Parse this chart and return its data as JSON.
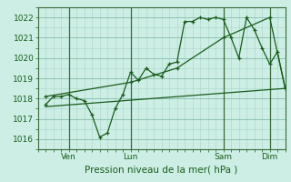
{
  "xlabel": "Pression niveau de la mer( hPa )",
  "bg_color": "#cceee4",
  "grid_color_major": "#88bbaa",
  "grid_color_minor": "#aad4c8",
  "line_color": "#1a5c1a",
  "spine_color": "#3a6a3a",
  "ylim": [
    1015.5,
    1022.5
  ],
  "yticks": [
    1016,
    1017,
    1018,
    1019,
    1020,
    1021,
    1022
  ],
  "xlim": [
    0,
    192
  ],
  "xtick_pos": [
    24,
    72,
    144,
    180
  ],
  "xtick_labels": [
    "Ven",
    "Lun",
    "Sam",
    "Dim"
  ],
  "vline_x": [
    24,
    72,
    144,
    180
  ],
  "series1_x": [
    6,
    12,
    18,
    24,
    30,
    36,
    42,
    48,
    54,
    60,
    66,
    72,
    78,
    84,
    90,
    96,
    102,
    108,
    114,
    120,
    126,
    132,
    138,
    144,
    150,
    156,
    162,
    168,
    174,
    180,
    186,
    192
  ],
  "series1_y": [
    1017.7,
    1018.1,
    1018.1,
    1018.2,
    1018.0,
    1017.9,
    1017.2,
    1016.1,
    1016.3,
    1017.5,
    1018.2,
    1019.3,
    1018.9,
    1019.5,
    1019.2,
    1019.1,
    1019.7,
    1019.8,
    1021.8,
    1021.8,
    1022.0,
    1021.9,
    1022.0,
    1021.9,
    1021.0,
    1020.0,
    1022.0,
    1021.4,
    1020.5,
    1019.7,
    1020.3,
    1018.5
  ],
  "series2_x": [
    6,
    72,
    108,
    144,
    180,
    192
  ],
  "series2_y": [
    1018.1,
    1018.8,
    1019.5,
    1021.0,
    1022.0,
    1018.5
  ],
  "series3_x": [
    6,
    192
  ],
  "series3_y": [
    1017.6,
    1018.5
  ]
}
